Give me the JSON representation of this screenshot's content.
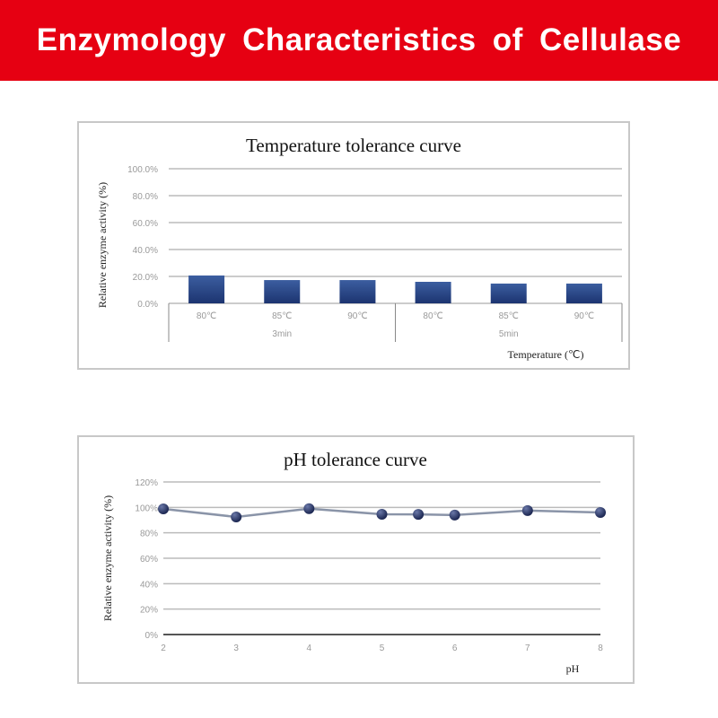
{
  "header": {
    "title": "Enzymology Characteristics of Cellulase"
  },
  "chart_data": [
    {
      "type": "bar",
      "title": "Temperature tolerance curve",
      "ylabel": "Relative enzyme activity (%)",
      "xlabel": "Temperature (℃)",
      "categories": [
        "80℃",
        "85℃",
        "90℃",
        "80℃",
        "85℃",
        "90℃"
      ],
      "groups": [
        {
          "label": "3min",
          "count": 3
        },
        {
          "label": "5min",
          "count": 3
        }
      ],
      "values": [
        20.7,
        17.3,
        17.3,
        16.0,
        14.7,
        14.7
      ],
      "ylim": [
        0,
        100
      ],
      "yticks": [
        "0.0%",
        "20.0%",
        "40.0%",
        "60.0%",
        "80.0%",
        "100.0%"
      ],
      "grid": true,
      "bar_color": "#2a4a8a"
    },
    {
      "type": "line",
      "title": "pH tolerance curve",
      "ylabel": "Relative enzyme activity (%)",
      "xlabel": "pH",
      "x": [
        2,
        3,
        4,
        5,
        5.5,
        6,
        7,
        8
      ],
      "y": [
        98.8,
        92.5,
        99,
        94.6,
        94.5,
        94,
        97.5,
        96
      ],
      "xticks": [
        "2",
        "3",
        "4",
        "5",
        "6",
        "7",
        "8"
      ],
      "ylim": [
        0,
        120
      ],
      "yticks": [
        "0%",
        "20%",
        "40%",
        "60%",
        "80%",
        "100%",
        "120%"
      ],
      "grid": true,
      "line_color": "#8a94a8",
      "marker_color": "#1a2550"
    }
  ]
}
